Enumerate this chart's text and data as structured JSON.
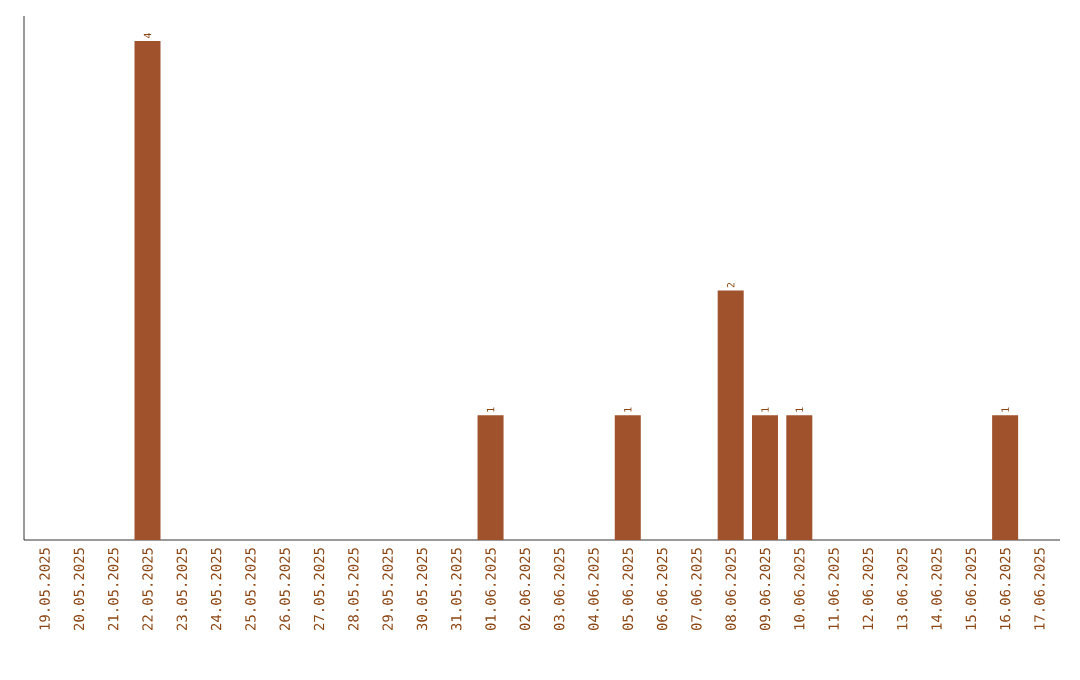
{
  "chart_data": {
    "type": "bar",
    "categories": [
      "19.05.2025",
      "20.05.2025",
      "21.05.2025",
      "22.05.2025",
      "23.05.2025",
      "24.05.2025",
      "25.05.2025",
      "26.05.2025",
      "27.05.2025",
      "28.05.2025",
      "29.05.2025",
      "30.05.2025",
      "31.05.2025",
      "01.06.2025",
      "02.06.2025",
      "03.06.2025",
      "04.06.2025",
      "05.06.2025",
      "06.06.2025",
      "07.06.2025",
      "08.06.2025",
      "09.06.2025",
      "10.06.2025",
      "11.06.2025",
      "12.06.2025",
      "13.06.2025",
      "14.06.2025",
      "15.06.2025",
      "16.06.2025",
      "17.06.2025"
    ],
    "values": [
      0,
      0,
      0,
      4,
      0,
      0,
      0,
      0,
      0,
      0,
      0,
      0,
      0,
      1,
      0,
      0,
      0,
      1,
      0,
      0,
      2,
      1,
      1,
      0,
      0,
      0,
      0,
      0,
      1,
      0
    ],
    "value_labels": [
      null,
      null,
      null,
      "4",
      null,
      null,
      null,
      null,
      null,
      null,
      null,
      null,
      null,
      "1",
      null,
      null,
      null,
      "1",
      null,
      null,
      "2",
      "1",
      "1",
      null,
      null,
      null,
      null,
      null,
      "1",
      null
    ],
    "color": "#a0522d"
  }
}
